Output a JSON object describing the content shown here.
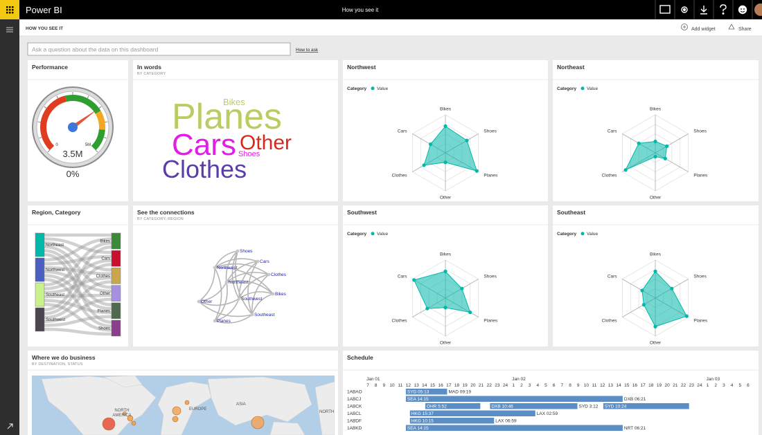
{
  "app": {
    "name": "Power BI",
    "page_title": "How you see it"
  },
  "header": {
    "title": "HOW YOU SEE IT",
    "actions": [
      "Add widget",
      "Share"
    ]
  },
  "qna": {
    "placeholder": "Ask a question about the data on this dashboard",
    "link": "How to ask"
  },
  "tiles": {
    "performance": {
      "title": "Performance",
      "gauge": {
        "min": 0,
        "max": {
          "value": 5,
          "label": "5M"
        },
        "value": {
          "value": 3.5,
          "label": "3.5M"
        },
        "change": {
          "value": 0,
          "label": "0%"
        }
      }
    },
    "in_words": {
      "title": "In words",
      "subtitle": "BY CATEGORY",
      "words": [
        {
          "text": "Planes",
          "color": "#bccb62"
        },
        {
          "text": "Bikes",
          "color": "#bccb62"
        },
        {
          "text": "Cars",
          "color": "#e21ee6"
        },
        {
          "text": "Other",
          "color": "#d42a1e"
        },
        {
          "text": "Shoes",
          "color": "#e21ee6"
        },
        {
          "text": "Clothes",
          "color": "#5a3ea6"
        }
      ]
    },
    "region_category": {
      "title": "Region, Category",
      "sources": [
        {
          "name": "Northeast",
          "color": "#01b8aa"
        },
        {
          "name": "Northwest",
          "color": "#4a5fc1"
        },
        {
          "name": "Southeast",
          "color": "#c9f28c"
        },
        {
          "name": "Southwest",
          "color": "#4a4650"
        }
      ],
      "targets": [
        {
          "name": "Bikes",
          "color": "#3a8a3a"
        },
        {
          "name": "Cars",
          "color": "#c8102e"
        },
        {
          "name": "Clothes",
          "color": "#c9a64c"
        },
        {
          "name": "Other",
          "color": "#a690e2"
        },
        {
          "name": "Planes",
          "color": "#4f6a4f"
        },
        {
          "name": "Shoes",
          "color": "#8c3e8c"
        }
      ]
    },
    "connections": {
      "title": "See the connections",
      "subtitle": "BY CATEGORY, REGION",
      "nodes": [
        "Shoes",
        "Cars",
        "Northwest",
        "Northeast",
        "Clothes",
        "Bikes",
        "Other",
        "Southwest",
        "Planes",
        "Southeast"
      ]
    },
    "radars": [
      {
        "title": "Northwest",
        "legend_title": "Category",
        "series_name": "Value",
        "color": "#01b8aa",
        "categories": [
          "Bikes",
          "Shoes",
          "Planes",
          "Other",
          "Clothes",
          "Cars"
        ],
        "values": [
          0.7,
          0.65,
          0.95,
          0.25,
          0.65,
          0.45
        ],
        "rlim": [
          0,
          1
        ]
      },
      {
        "title": "Northeast",
        "legend_title": "Category",
        "series_name": "Value",
        "color": "#01b8aa",
        "categories": [
          "Bikes",
          "Shoes",
          "Planes",
          "Other",
          "Clothes",
          "Cars"
        ],
        "values": [
          0.3,
          0.35,
          0.3,
          0.1,
          0.9,
          0.5
        ],
        "rlim": [
          0,
          1
        ]
      },
      {
        "title": "Southwest",
        "legend_title": "Category",
        "series_name": "Value",
        "color": "#01b8aa",
        "categories": [
          "Bikes",
          "Shoes",
          "Planes",
          "Other",
          "Clothes",
          "Cars"
        ],
        "values": [
          0.7,
          0.5,
          0.75,
          0.25,
          0.55,
          0.95
        ],
        "rlim": [
          0,
          1
        ]
      },
      {
        "title": "Southeast",
        "legend_title": "Category",
        "series_name": "Value",
        "color": "#01b8aa",
        "categories": [
          "Bikes",
          "Shoes",
          "Planes",
          "Other",
          "Clothes",
          "Cars"
        ],
        "values": [
          0.7,
          0.5,
          0.95,
          0.75,
          0.35,
          0.4
        ],
        "rlim": [
          0,
          1
        ]
      }
    ],
    "map": {
      "title": "Where we do business",
      "subtitle": "BY DESTINATION, STATUS",
      "labels": [
        "NORTH",
        "AMERICA",
        "EUROPE",
        "ASIA",
        "NORTH AME"
      ]
    },
    "schedule": {
      "title": "Schedule",
      "dates": [
        {
          "label": "Jan 01",
          "at": 0
        },
        {
          "label": "Jan 02",
          "at": 18
        },
        {
          "label": "Jan 03",
          "at": 42
        }
      ],
      "hours": [
        7,
        8,
        9,
        10,
        11,
        12,
        13,
        14,
        15,
        16,
        17,
        18,
        19,
        20,
        21,
        22,
        23,
        24,
        1,
        2,
        3,
        4,
        5,
        6,
        7,
        8,
        9,
        10,
        11,
        12,
        13,
        14,
        15,
        16,
        17,
        18,
        19,
        20,
        21,
        22,
        23,
        24,
        1,
        2,
        3,
        4,
        5,
        6
      ],
      "rows": [
        {
          "id": "1ABAO",
          "bars": [
            {
              "label": "SYD 05:13",
              "start": 4.7,
              "end": 9.8,
              "next": "MAD 09:19"
            }
          ]
        },
        {
          "id": "1ABCJ",
          "bars": [
            {
              "label": "SEA 14:15",
              "start": 4.7,
              "end": 31.5,
              "next": "DXB 06:21"
            }
          ]
        },
        {
          "id": "1ABCK",
          "bars": [
            {
              "label": "OHR 5:52",
              "start": 7.1,
              "end": 13.9
            },
            {
              "label": "DXB 10:46",
              "start": 15.1,
              "end": 25.9,
              "next": "SYD 3:12"
            },
            {
              "label": "SYD 10:24",
              "start": 29.1,
              "end": 39.7
            }
          ]
        },
        {
          "id": "1ABCL",
          "bars": [
            {
              "label": "HKG 15:37",
              "start": 5.2,
              "end": 20.7,
              "next": "LAX 02:59"
            }
          ]
        },
        {
          "id": "1ABDF",
          "bars": [
            {
              "label": "HKG 10:15",
              "start": 5.2,
              "end": 15.6,
              "next": "LAX 06:59"
            }
          ]
        },
        {
          "id": "1ABKD",
          "bars": [
            {
              "label": "SEA 14:15",
              "start": 4.7,
              "end": 31.5,
              "next": "NRT 06:21"
            }
          ]
        }
      ]
    }
  }
}
